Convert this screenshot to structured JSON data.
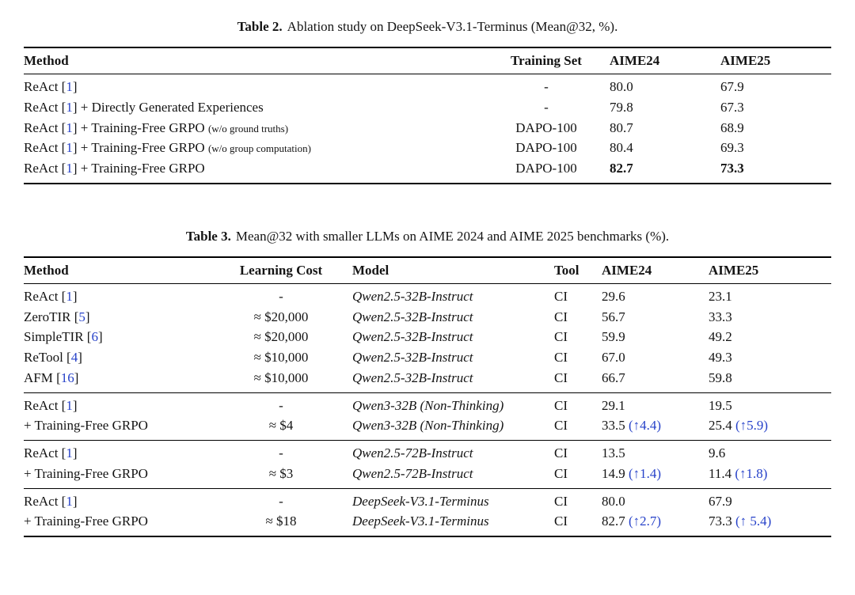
{
  "colors": {
    "link_blue": "#2742c9",
    "text": "#141414",
    "rule": "#000000",
    "background": "#ffffff"
  },
  "table2": {
    "caption_label": "Table 2.",
    "caption_text": "Ablation study on DeepSeek-V3.1-Terminus (Mean@32, %).",
    "columns": [
      "Method",
      "Training Set",
      "AIME24",
      "AIME25"
    ],
    "rows": [
      [
        [
          {
            "t": "ReAct ["
          },
          {
            "t": "1",
            "c": "cite"
          },
          {
            "t": "]"
          }
        ],
        "-",
        "80.0",
        "67.9"
      ],
      [
        [
          {
            "t": "ReAct ["
          },
          {
            "t": "1",
            "c": "cite"
          },
          {
            "t": "] + Directly Generated Experiences"
          }
        ],
        "-",
        "79.8",
        "67.3"
      ],
      [
        [
          {
            "t": "ReAct ["
          },
          {
            "t": "1",
            "c": "cite"
          },
          {
            "t": "] + Training-Free GRPO "
          },
          {
            "t": "(w/o ground truths)",
            "c": "small"
          }
        ],
        "DAPO-100",
        "80.7",
        "68.9"
      ],
      [
        [
          {
            "t": "ReAct ["
          },
          {
            "t": "1",
            "c": "cite"
          },
          {
            "t": "] + Training-Free GRPO "
          },
          {
            "t": "(w/o group computation)",
            "c": "small"
          }
        ],
        "DAPO-100",
        "80.4",
        "69.3"
      ],
      [
        [
          {
            "t": "ReAct ["
          },
          {
            "t": "1",
            "c": "cite"
          },
          {
            "t": "] + Training-Free GRPO"
          }
        ],
        "DAPO-100",
        [
          {
            "t": "82.7",
            "c": "bold"
          }
        ],
        [
          {
            "t": "73.3",
            "c": "bold"
          }
        ]
      ]
    ]
  },
  "table3": {
    "caption_label": "Table 3.",
    "caption_text": "Mean@32 with smaller LLMs on AIME 2024 and AIME 2025 benchmarks (%).",
    "columns": [
      "Method",
      "Learning Cost",
      "Model",
      "Tool",
      "AIME24",
      "AIME25"
    ],
    "groups": [
      {
        "rows": [
          [
            [
              {
                "t": "ReAct ["
              },
              {
                "t": "1",
                "c": "cite"
              },
              {
                "t": "]"
              }
            ],
            "-",
            [
              {
                "t": "Qwen2.5-32B-Instruct",
                "c": "italic"
              }
            ],
            "CI",
            "29.6",
            "23.1"
          ],
          [
            [
              {
                "t": "ZeroTIR ["
              },
              {
                "t": "5",
                "c": "cite"
              },
              {
                "t": "]"
              }
            ],
            "≈ $20,000",
            [
              {
                "t": "Qwen2.5-32B-Instruct",
                "c": "italic"
              }
            ],
            "CI",
            "56.7",
            "33.3"
          ],
          [
            [
              {
                "t": "SimpleTIR ["
              },
              {
                "t": "6",
                "c": "cite"
              },
              {
                "t": "]"
              }
            ],
            "≈ $20,000",
            [
              {
                "t": "Qwen2.5-32B-Instruct",
                "c": "italic"
              }
            ],
            "CI",
            "59.9",
            "49.2"
          ],
          [
            [
              {
                "t": "ReTool ["
              },
              {
                "t": "4",
                "c": "cite"
              },
              {
                "t": "]"
              }
            ],
            "≈ $10,000",
            [
              {
                "t": "Qwen2.5-32B-Instruct",
                "c": "italic"
              }
            ],
            "CI",
            "67.0",
            "49.3"
          ],
          [
            [
              {
                "t": "AFM ["
              },
              {
                "t": "16",
                "c": "cite"
              },
              {
                "t": "]"
              }
            ],
            "≈ $10,000",
            [
              {
                "t": "Qwen2.5-32B-Instruct",
                "c": "italic"
              }
            ],
            "CI",
            "66.7",
            "59.8"
          ]
        ]
      },
      {
        "rows": [
          [
            [
              {
                "t": "ReAct ["
              },
              {
                "t": "1",
                "c": "cite"
              },
              {
                "t": "]"
              }
            ],
            "-",
            [
              {
                "t": "Qwen3-32B (Non-Thinking)",
                "c": "italic"
              }
            ],
            "CI",
            "29.1",
            "19.5"
          ],
          [
            "+ Training-Free GRPO",
            "≈ $4",
            [
              {
                "t": "Qwen3-32B (Non-Thinking)",
                "c": "italic"
              }
            ],
            "CI",
            [
              {
                "t": "33.5 "
              },
              {
                "t": "(↑4.4)",
                "c": "blue"
              }
            ],
            [
              {
                "t": "25.4 "
              },
              {
                "t": "(↑5.9)",
                "c": "blue"
              }
            ]
          ]
        ]
      },
      {
        "rows": [
          [
            [
              {
                "t": "ReAct ["
              },
              {
                "t": "1",
                "c": "cite"
              },
              {
                "t": "]"
              }
            ],
            "-",
            [
              {
                "t": "Qwen2.5-72B-Instruct",
                "c": "italic"
              }
            ],
            "CI",
            "13.5",
            "9.6"
          ],
          [
            "+ Training-Free GRPO",
            "≈ $3",
            [
              {
                "t": "Qwen2.5-72B-Instruct",
                "c": "italic"
              }
            ],
            "CI",
            [
              {
                "t": "14.9 "
              },
              {
                "t": "(↑1.4)",
                "c": "blue"
              }
            ],
            [
              {
                "t": "11.4 "
              },
              {
                "t": "(↑1.8)",
                "c": "blue"
              }
            ]
          ]
        ]
      },
      {
        "rows": [
          [
            [
              {
                "t": "ReAct ["
              },
              {
                "t": "1",
                "c": "cite"
              },
              {
                "t": "]"
              }
            ],
            "-",
            [
              {
                "t": "DeepSeek-V3.1-Terminus",
                "c": "italic"
              }
            ],
            "CI",
            "80.0",
            "67.9"
          ],
          [
            "+ Training-Free GRPO",
            "≈ $18",
            [
              {
                "t": "DeepSeek-V3.1-Terminus",
                "c": "italic"
              }
            ],
            "CI",
            [
              {
                "t": "82.7 "
              },
              {
                "t": "(↑2.7)",
                "c": "blue"
              }
            ],
            [
              {
                "t": "73.3 "
              },
              {
                "t": "(↑ 5.4)",
                "c": "blue"
              }
            ]
          ]
        ]
      }
    ]
  }
}
